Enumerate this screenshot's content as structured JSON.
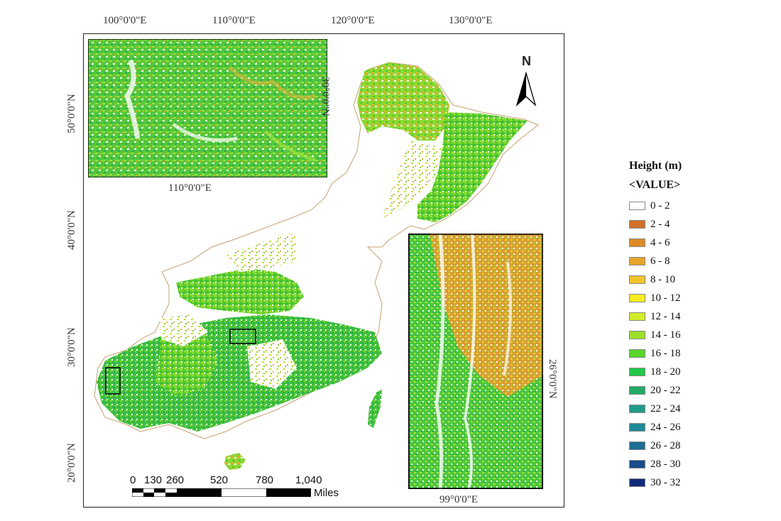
{
  "map": {
    "top_axis_labels": [
      "100°0'0\"E",
      "110°0'0\"E",
      "120°0'0\"E",
      "130°0'0\"E"
    ],
    "left_axis_labels": [
      "50°0'0\"N",
      "40°0'0\"N",
      "30°0'0\"N",
      "20°0'0\"N"
    ],
    "inset_top": {
      "bottom_label": "110°0'0\"E",
      "right_label": "30°0'0\"N"
    },
    "inset_right": {
      "bottom_label": "99°0'0\"E",
      "right_label": "26°0'0\"N"
    },
    "north_label": "N",
    "scale_bar": {
      "ticks": [
        "0",
        "130",
        "260",
        "520",
        "780",
        "1,040"
      ],
      "unit": "Miles"
    }
  },
  "legend": {
    "title": "Height (m)",
    "subtitle": "<VALUE>",
    "items": [
      {
        "label": "0 - 2",
        "color": "#ffffff"
      },
      {
        "label": "2 - 4",
        "color": "#d2702a"
      },
      {
        "label": "4 - 6",
        "color": "#dd8a27"
      },
      {
        "label": "6 - 8",
        "color": "#e8a52a"
      },
      {
        "label": "8 - 10",
        "color": "#f1c42a"
      },
      {
        "label": "10 - 12",
        "color": "#f7ec22"
      },
      {
        "label": "12 - 14",
        "color": "#d2ec2a"
      },
      {
        "label": "14 - 16",
        "color": "#9de02a"
      },
      {
        "label": "16 - 18",
        "color": "#5ad62a"
      },
      {
        "label": "18 - 20",
        "color": "#22c84a"
      },
      {
        "label": "20 - 22",
        "color": "#22aa6a"
      },
      {
        "label": "22 - 24",
        "color": "#229a88"
      },
      {
        "label": "24 - 26",
        "color": "#1f8a98"
      },
      {
        "label": "26 - 28",
        "color": "#1c6e94"
      },
      {
        "label": "28 - 30",
        "color": "#184c8c"
      },
      {
        "label": "30 - 32",
        "color": "#102a7a"
      }
    ]
  }
}
